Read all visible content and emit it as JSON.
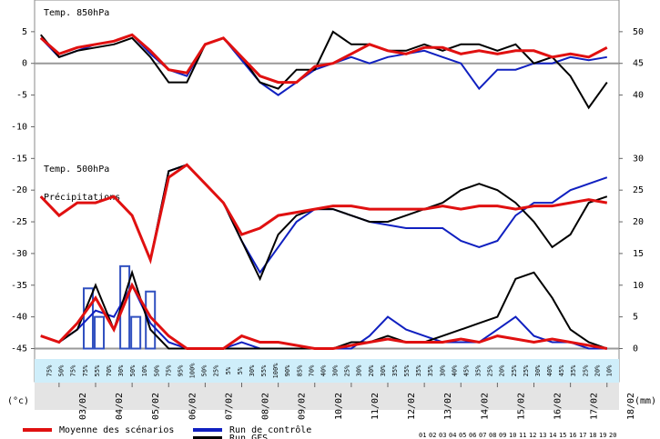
{
  "chart_data": {
    "type": "line",
    "panels": [
      "Temp. 850hPa",
      "Temp. 500hPa",
      "Précipitations"
    ],
    "y_unit": "(°c)",
    "y2_unit": "(mm)",
    "x": [
      2.5,
      3,
      3.5,
      4,
      4.5,
      5,
      5.5,
      6,
      6.5,
      7,
      7.5,
      8,
      8.5,
      9,
      9.5,
      10,
      10.5,
      11,
      11.5,
      12,
      12.5,
      13,
      13.5,
      14,
      14.5,
      15,
      15.5,
      16,
      16.5,
      17,
      17.5,
      18
    ],
    "xlim": [
      2.33,
      18.33
    ],
    "xticks": [
      {
        "value": 3,
        "label": "03/02"
      },
      {
        "value": 4,
        "label": "04/02"
      },
      {
        "value": 5,
        "label": "05/02"
      },
      {
        "value": 6,
        "label": "06/02"
      },
      {
        "value": 7,
        "label": "07/02"
      },
      {
        "value": 8,
        "label": "08/02"
      },
      {
        "value": 9,
        "label": "09/02"
      },
      {
        "value": 10,
        "label": "10/02"
      },
      {
        "value": 11,
        "label": "11/02"
      },
      {
        "value": 12,
        "label": "12/02"
      },
      {
        "value": 13,
        "label": "13/02"
      },
      {
        "value": 14,
        "label": "14/02"
      },
      {
        "value": 15,
        "label": "15/02"
      },
      {
        "value": 16,
        "label": "16/02"
      },
      {
        "value": 17,
        "label": "17/02"
      },
      {
        "value": 18,
        "label": "18/02"
      }
    ],
    "ylim": [
      -45,
      10
    ],
    "yticks": [
      5,
      0,
      -5,
      -10,
      -15,
      -20,
      -25,
      -30,
      -35,
      -40,
      -45
    ],
    "y2lim": [
      0,
      55
    ],
    "y2ticks": [
      50,
      45,
      40,
      30,
      25,
      20,
      15,
      10,
      5,
      0
    ],
    "series": [
      {
        "name": "Moyenne des scénarios",
        "color": "#e01010",
        "t850": [
          4,
          1.5,
          2.5,
          3,
          3.5,
          4.5,
          2,
          -1,
          -1.5,
          3,
          4,
          1,
          -2,
          -3,
          -3,
          -0.5,
          0,
          1.5,
          3,
          2,
          1.5,
          2.5,
          2.5,
          1.5,
          2,
          1.5,
          2,
          2,
          1,
          1.5,
          1,
          2.5
        ],
        "t500": [
          -21,
          -24,
          -22,
          -22,
          -21,
          -24,
          -31,
          -18,
          -16,
          -19,
          -22,
          -27,
          -26,
          -24,
          -23.5,
          -23,
          -22.5,
          -22.5,
          -23,
          -23,
          -23,
          -23,
          -22.5,
          -23,
          -22.5,
          -22.5,
          -23,
          -22.5,
          -22.5,
          -22,
          -21.5,
          -22
        ],
        "precip": [
          2,
          1,
          4,
          8,
          3,
          10,
          5,
          2,
          0,
          0,
          0,
          2,
          1,
          1,
          0.5,
          0,
          0,
          0.5,
          1,
          1.5,
          1,
          1,
          1,
          1.5,
          1,
          2,
          1.5,
          1,
          1.5,
          1,
          0.5,
          0
        ]
      },
      {
        "name": "Run de contrôle",
        "color": "#1020c0",
        "t850": [
          4,
          1,
          2,
          3,
          3.5,
          4.5,
          1.5,
          -1,
          -2,
          3,
          4,
          0.5,
          -3,
          -5,
          -3,
          -1,
          0,
          1,
          0,
          1,
          1.5,
          2,
          1,
          0,
          -4,
          -1,
          -1,
          0,
          0,
          1,
          0.5,
          1
        ],
        "t500": [
          -21,
          -24,
          -22,
          -22,
          -21,
          -24,
          -31,
          -17,
          -16,
          -19,
          -22,
          -28,
          -33,
          -29,
          -25,
          -23,
          -23,
          -24,
          -25,
          -25.5,
          -26,
          -26,
          -26,
          -28,
          -29,
          -28,
          -24,
          -22,
          -22,
          -20,
          -19,
          -18
        ],
        "precip": [
          2,
          1,
          3,
          6,
          5,
          10,
          4,
          1,
          0,
          0,
          0,
          1,
          0,
          0,
          0,
          0,
          0,
          0,
          2,
          5,
          3,
          2,
          1,
          1,
          1,
          3,
          5,
          2,
          1,
          1,
          0,
          0
        ]
      },
      {
        "name": "Run GFS",
        "color": "#000000",
        "t850": [
          4.5,
          1,
          2,
          2.5,
          3,
          4,
          1,
          -3,
          -3,
          3,
          4,
          1,
          -3,
          -4,
          -1,
          -1,
          5,
          3,
          3,
          2,
          2,
          3,
          2,
          3,
          3,
          2,
          3,
          0,
          1,
          -2,
          -7,
          -3
        ],
        "t500": [
          -21,
          -24,
          -22,
          -22,
          -21,
          -24,
          -31,
          -17,
          -16,
          -19,
          -22,
          -28,
          -34,
          -27,
          -24,
          -23,
          -23,
          -24,
          -25,
          -25,
          -24,
          -23,
          -22,
          -20,
          -19,
          -20,
          -22,
          -25,
          -29,
          -27,
          -22,
          -21
        ],
        "precip": [
          2,
          1,
          3,
          10,
          3,
          12,
          3,
          0,
          0,
          0,
          0,
          0,
          0,
          0,
          0,
          0,
          0,
          1,
          1,
          2,
          1,
          1,
          2,
          3,
          4,
          5,
          11,
          12,
          8,
          3,
          1,
          0
        ]
      }
    ],
    "daily_bars": {
      "color": "#3050c0",
      "x": [
        3.8,
        4.1,
        4.8,
        5.1,
        5.5
      ],
      "values": [
        9.5,
        5,
        13,
        5,
        9
      ]
    },
    "probability_labels": [
      "75%",
      "50%",
      "75%",
      "75%",
      "55%",
      "70%",
      "30%",
      "50%",
      "10%",
      "50%",
      "75%",
      "95%",
      "100%",
      "50%",
      "25%",
      "5%",
      "5%",
      "30%",
      "55%",
      "100%",
      "90%",
      "85%",
      "70%",
      "40%",
      "30%",
      "25%",
      "30%",
      "20%",
      "30%",
      "35%",
      "55%",
      "35%",
      "35%",
      "30%",
      "40%",
      "45%",
      "35%",
      "25%",
      "20%",
      "25%",
      "25%",
      "30%",
      "40%",
      "45%",
      "35%",
      "25%",
      "20%",
      "10%"
    ],
    "members": [
      "01",
      "02",
      "03",
      "04",
      "05",
      "06",
      "07",
      "08",
      "09",
      "10",
      "11",
      "12",
      "13",
      "14",
      "15",
      "16",
      "17",
      "18",
      "19",
      "20"
    ]
  }
}
